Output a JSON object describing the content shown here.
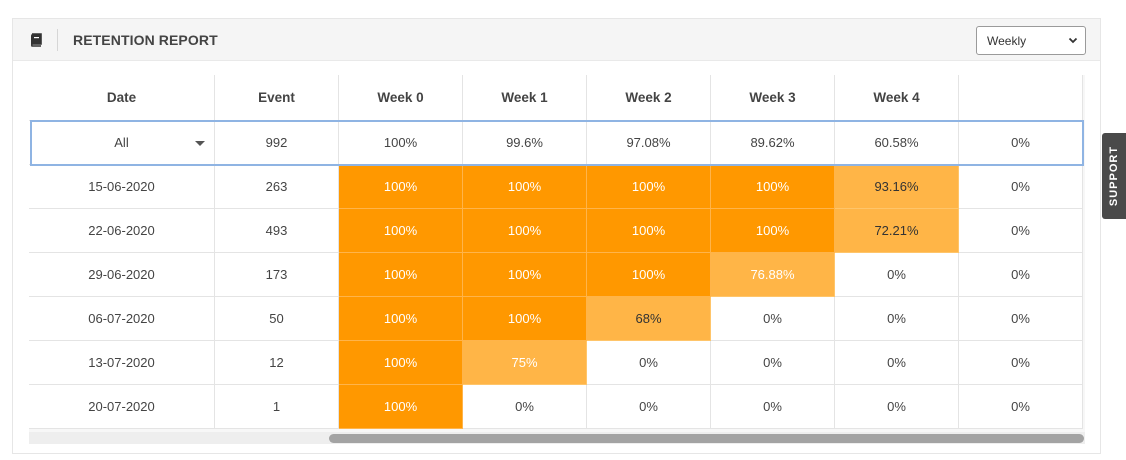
{
  "panel": {
    "title": "RETENTION REPORT",
    "title_icon": "book-icon",
    "period_select": {
      "value": "Weekly",
      "icon": "chevron-down-icon"
    }
  },
  "support_tab": {
    "label": "SUPPORT"
  },
  "table": {
    "columns": [
      "Date",
      "Event",
      "Week 0",
      "Week 1",
      "Week 2",
      "Week 3",
      "Week 4",
      ""
    ],
    "all_row": {
      "date": "All",
      "event": "992",
      "weeks": [
        "100%",
        "99.6%",
        "97.08%",
        "89.62%",
        "60.58%",
        "0%"
      ]
    },
    "rows": [
      {
        "date": "15-06-2020",
        "event": "263",
        "weeks": [
          "100%",
          "100%",
          "100%",
          "100%",
          "93.16%",
          "0%"
        ]
      },
      {
        "date": "22-06-2020",
        "event": "493",
        "weeks": [
          "100%",
          "100%",
          "100%",
          "100%",
          "72.21%",
          "0%"
        ]
      },
      {
        "date": "29-06-2020",
        "event": "173",
        "weeks": [
          "100%",
          "100%",
          "100%",
          "76.88%",
          "0%",
          "0%"
        ]
      },
      {
        "date": "06-07-2020",
        "event": "50",
        "weeks": [
          "100%",
          "100%",
          "68%",
          "0%",
          "0%",
          "0%"
        ]
      },
      {
        "date": "13-07-2020",
        "event": "12",
        "weeks": [
          "100%",
          "75%",
          "0%",
          "0%",
          "0%",
          "0%"
        ]
      },
      {
        "date": "20-07-2020",
        "event": "1",
        "weeks": [
          "100%",
          "0%",
          "0%",
          "0%",
          "0%",
          "0%"
        ]
      }
    ]
  },
  "colors": {
    "full_retention": "#ff9800",
    "partial_retention": "#ffb547",
    "selected_row_border": "#8fb4e3"
  }
}
